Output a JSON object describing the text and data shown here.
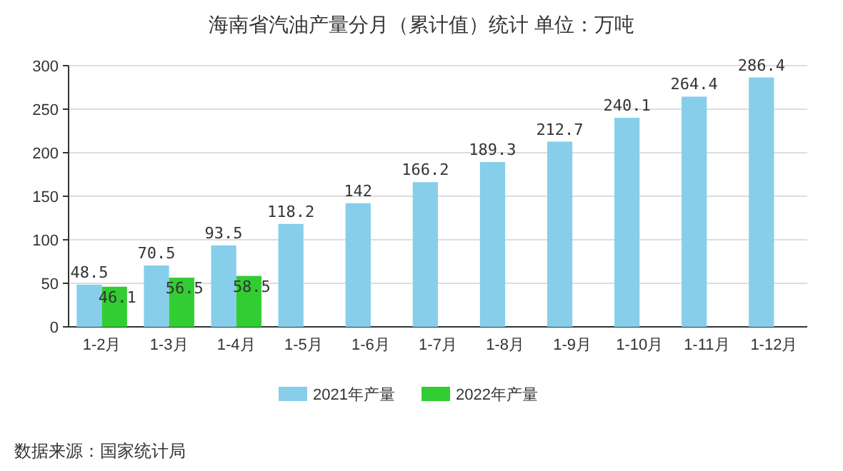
{
  "chart_data": {
    "type": "bar",
    "title": "海南省汽油产量分月（累计值）统计  单位：万吨",
    "categories": [
      "1-2月",
      "1-3月",
      "1-4月",
      "1-5月",
      "1-6月",
      "1-7月",
      "1-8月",
      "1-9月",
      "1-10月",
      "1-11月",
      "1-12月"
    ],
    "series": [
      {
        "name": "2021年产量",
        "color": "#87ceeb",
        "values": [
          48.5,
          70.5,
          93.5,
          118.2,
          142,
          166.2,
          189.3,
          212.7,
          240.1,
          264.4,
          286.4
        ]
      },
      {
        "name": "2022年产量",
        "color": "#32cd32",
        "values": [
          46.1,
          56.5,
          58.5,
          null,
          null,
          null,
          null,
          null,
          null,
          null,
          null
        ]
      }
    ],
    "ylim": [
      0,
      300
    ],
    "yticks": [
      0,
      50,
      100,
      150,
      200,
      250,
      300
    ],
    "grid": "y",
    "legend": "bottom",
    "data_labels": true,
    "annotations": [
      "数据来源：国家统计局"
    ]
  }
}
